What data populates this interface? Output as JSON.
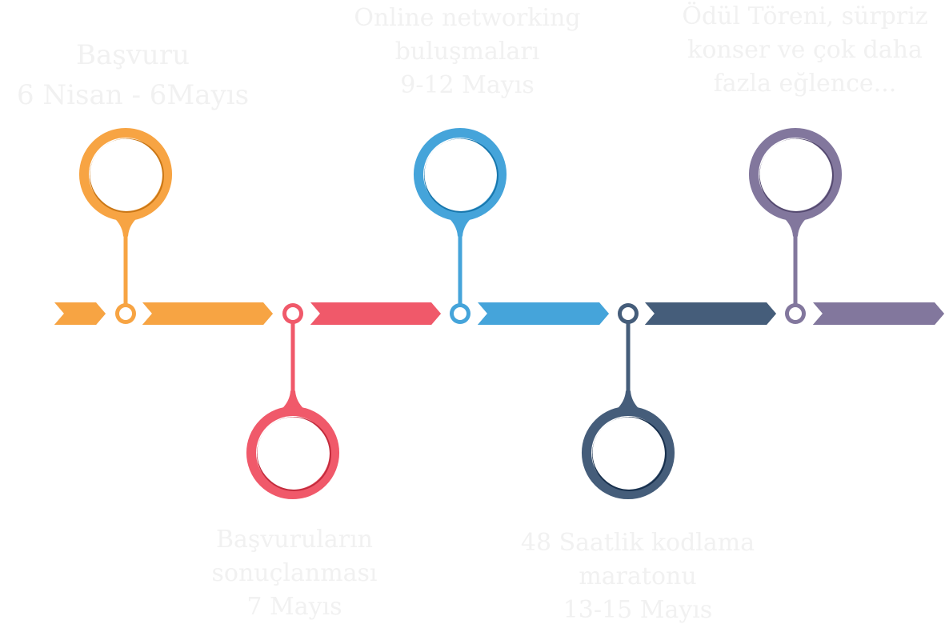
{
  "timeline": {
    "milestones": [
      {
        "id": "m1",
        "position": "top",
        "color": "#F7A443",
        "lines": [
          "Başvuru",
          "6 Nisan - 6Mayıs"
        ]
      },
      {
        "id": "m2",
        "position": "bottom",
        "color": "#F0596A",
        "lines": [
          "Başvuruların",
          "sonuçlanması",
          "7 Mayıs"
        ]
      },
      {
        "id": "m3",
        "position": "top",
        "color": "#45A4DA",
        "lines": [
          "Online networking",
          "buluşmaları",
          "9-12 Mayıs"
        ]
      },
      {
        "id": "m4",
        "position": "bottom",
        "color": "#455D7A",
        "lines": [
          "48 Saatlik kodlama",
          "maratonu",
          "13-15 Mayıs"
        ]
      },
      {
        "id": "m5",
        "position": "top",
        "color": "#82779D",
        "lines": [
          "Ödül Töreni, sürpriz",
          "konser ve çok daha",
          "fazla eğlence..."
        ]
      }
    ]
  }
}
